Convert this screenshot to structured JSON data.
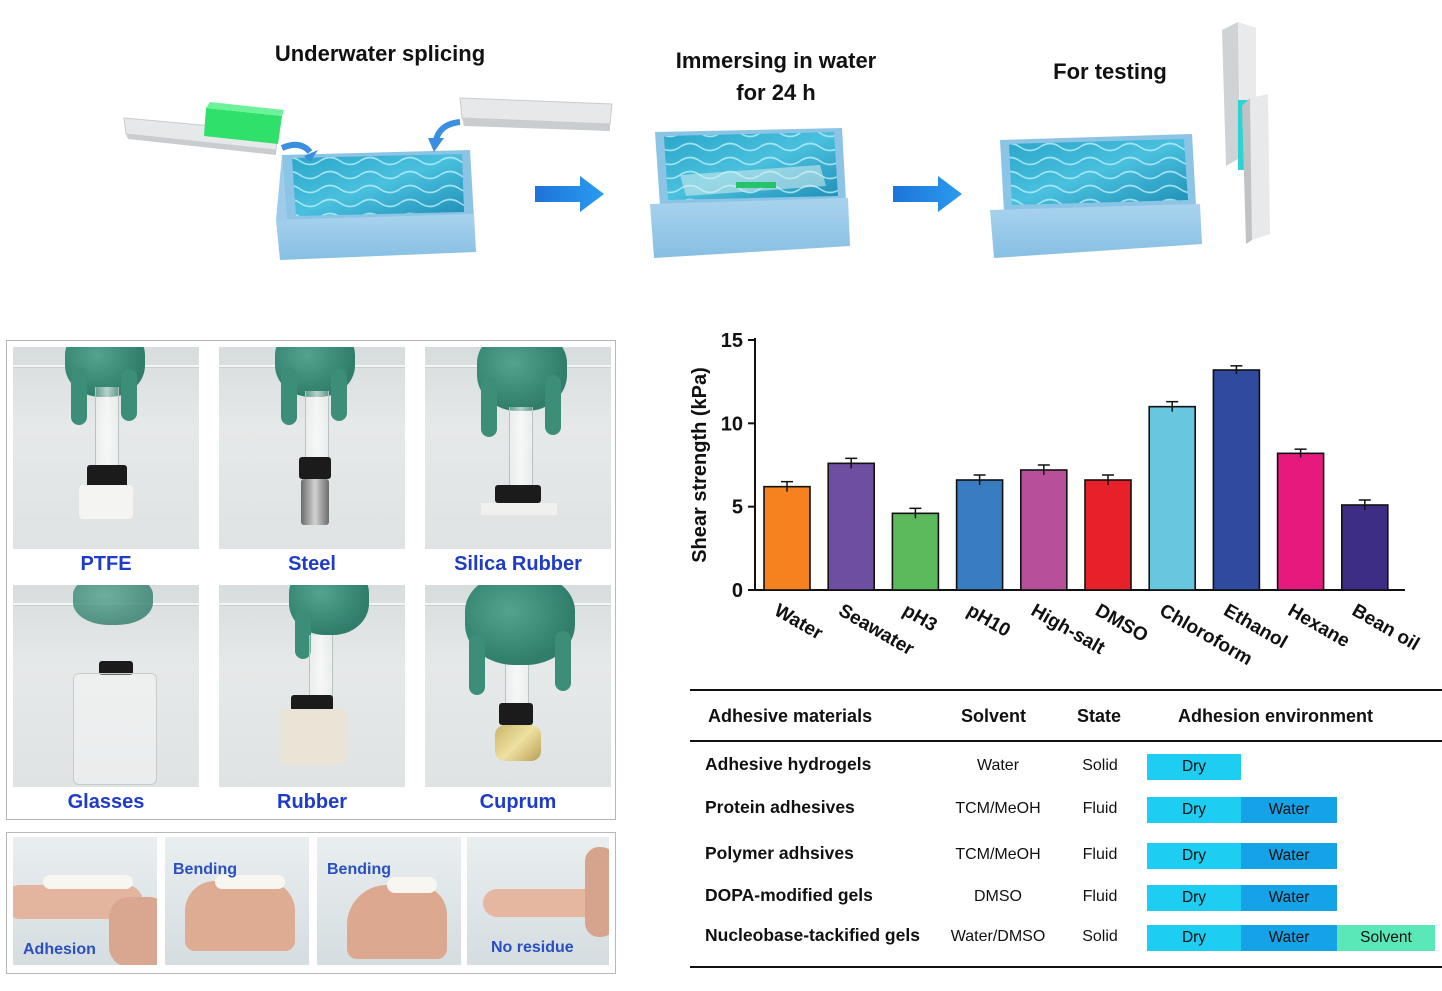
{
  "schematic": {
    "steps": [
      {
        "title": "Underwater splicing"
      },
      {
        "title": "Immersing in water\nfor 24 h"
      },
      {
        "title": "For testing"
      }
    ]
  },
  "substrate_photos": [
    {
      "label": "PTFE"
    },
    {
      "label": "Steel"
    },
    {
      "label": "Silica Rubber"
    },
    {
      "label": "Glasses"
    },
    {
      "label": "Rubber"
    },
    {
      "label": "Cuprum"
    }
  ],
  "finger_photos": [
    {
      "label": "Adhesion"
    },
    {
      "label": "Bending"
    },
    {
      "label": "Bending"
    },
    {
      "label": "No residue"
    }
  ],
  "chart_data": {
    "type": "bar",
    "ylabel": "Shear strength (kPa)",
    "ylim": [
      0,
      15
    ],
    "yticks": [
      0,
      5,
      10,
      15
    ],
    "categories": [
      "Water",
      "Seawater",
      "pH3",
      "pH10",
      "High-salt",
      "DMSO",
      "Chloroform",
      "Ethanol",
      "Hexane",
      "Bean oil"
    ],
    "values": [
      6.2,
      7.6,
      4.6,
      6.6,
      7.2,
      6.6,
      11.0,
      13.2,
      8.2,
      5.1
    ],
    "errors": [
      0.3,
      0.3,
      0.3,
      0.3,
      0.3,
      0.3,
      0.3,
      0.25,
      0.25,
      0.3
    ],
    "colors": [
      "#f5821f",
      "#6e4ea0",
      "#5cba5c",
      "#3a7cc2",
      "#b84f9a",
      "#e8202a",
      "#66c7df",
      "#2f4a9e",
      "#e61a7c",
      "#3e2d84"
    ]
  },
  "table": {
    "headers": [
      "Adhesive materials",
      "Solvent",
      "State",
      "Adhesion environment"
    ],
    "rows": [
      {
        "material": "Adhesive hydrogels",
        "solvent": "Water",
        "state": "Solid",
        "env": [
          "Dry"
        ]
      },
      {
        "material": "Protein adhesives",
        "solvent": "TCM/MeOH",
        "state": "Fluid",
        "env": [
          "Dry",
          "Water"
        ]
      },
      {
        "material": "Polymer adhsives",
        "solvent": "TCM/MeOH",
        "state": "Fluid",
        "env": [
          "Dry",
          "Water"
        ]
      },
      {
        "material": "DOPA-modified gels",
        "solvent": "DMSO",
        "state": "Fluid",
        "env": [
          "Dry",
          "Water"
        ]
      },
      {
        "material": "Nucleobase-tackified gels",
        "solvent": "Water/DMSO",
        "state": "Solid",
        "env": [
          "Dry",
          "Water",
          "Solvent"
        ]
      }
    ]
  }
}
